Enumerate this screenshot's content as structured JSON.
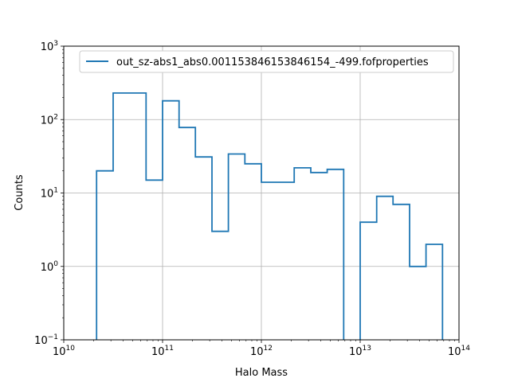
{
  "chart_data": {
    "type": "histogram-step",
    "title": "",
    "xlabel": "Halo Mass",
    "ylabel": "Counts",
    "xscale": "log",
    "yscale": "log",
    "xlim": [
      10000000000.0,
      100000000000000.0
    ],
    "ylim": [
      0.1,
      1000
    ],
    "grid": true,
    "legend_position": "top-right",
    "x_ticks": [
      {
        "base": "10",
        "exp": "10"
      },
      {
        "base": "10",
        "exp": "11"
      },
      {
        "base": "10",
        "exp": "12"
      },
      {
        "base": "10",
        "exp": "13"
      },
      {
        "base": "10",
        "exp": "14"
      }
    ],
    "y_ticks": [
      {
        "base": "10",
        "exp": "−1"
      },
      {
        "base": "10",
        "exp": "0"
      },
      {
        "base": "10",
        "exp": "1"
      },
      {
        "base": "10",
        "exp": "2"
      },
      {
        "base": "10",
        "exp": "3"
      }
    ],
    "series": [
      {
        "name": "out_sz-abs1_abs0.00115384615384615​4_-499.fofproperties",
        "color": "#1f77b4",
        "bin_edges": [
          21500000000.0,
          31600000000.0,
          46400000000.0,
          68100000000.0,
          100000000000.0,
          147000000000.0,
          215000000000.0,
          316000000000.0,
          464000000000.0,
          681000000000.0,
          1000000000000.0,
          1470000000000.0,
          2150000000000.0,
          3160000000000.0,
          4640000000000.0,
          6810000000000.0,
          10000000000000.0,
          14700000000000.0,
          21500000000000.0,
          31600000000000.0,
          46400000000000.0,
          68100000000000.0
        ],
        "counts": [
          20,
          230,
          230,
          15,
          180,
          78,
          31,
          3,
          34,
          25,
          14,
          14,
          22,
          19,
          21,
          0,
          4,
          9,
          7,
          1,
          2
        ]
      }
    ]
  }
}
